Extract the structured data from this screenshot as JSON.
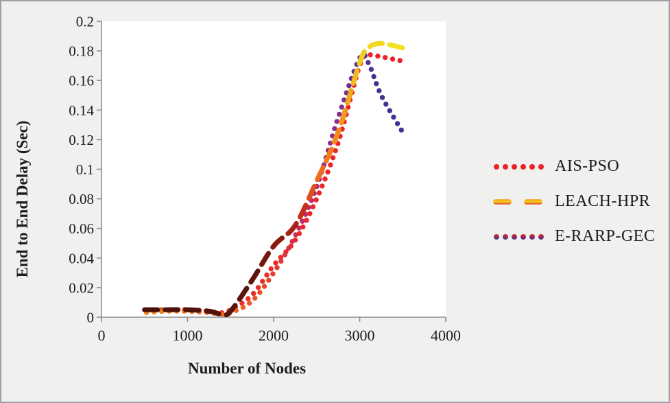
{
  "figure": {
    "bg": "#f0f0ee",
    "border_color": "#9ba1a4",
    "plot_bg": "#ffffff",
    "axis_color": "#8a8f91",
    "text_color": "#1d1d20"
  },
  "chart_data": {
    "type": "line",
    "title": "",
    "xlabel": "Number of Nodes",
    "ylabel": "End to End Delay (Sec)",
    "xlim": [
      0,
      4000
    ],
    "ylim": [
      0,
      0.2
    ],
    "grid": false,
    "legend_position": "right-center",
    "x_tick_values": [
      0,
      1000,
      2000,
      3000,
      4000
    ],
    "x_tick_labels": [
      "0",
      "1000",
      "2000",
      "3000",
      "4000"
    ],
    "y_tick_values": [
      0,
      0.02,
      0.04,
      0.06,
      0.08,
      0.1,
      0.12,
      0.14,
      0.16,
      0.18,
      0.2
    ],
    "y_tick_labels": [
      "0",
      "0.02",
      "0.04",
      "0.06",
      "0.08",
      "0.1",
      "0.12",
      "0.14",
      "0.16",
      "0.18",
      "0.2"
    ],
    "x": [
      500,
      750,
      1000,
      1250,
      1400,
      1500,
      1750,
      2000,
      2250,
      2500,
      2750,
      3000,
      3100,
      3250,
      3500
    ],
    "series": [
      {
        "name": "AIS-PSO",
        "marker": "dot",
        "values": [
          0.005,
          0.005,
          0.005,
          0.004,
          0.003,
          0.005,
          0.015,
          0.035,
          0.052,
          0.08,
          0.118,
          0.17,
          0.177,
          0.176,
          0.173
        ],
        "color_stops": [
          [
            0,
            "#ea4427"
          ],
          [
            0.3,
            "#e92b28"
          ],
          [
            1,
            "#ec2027"
          ]
        ],
        "legend_marker_colors": [
          "#ec2027"
        ]
      },
      {
        "name": "LEACH-HPR",
        "marker": "dash",
        "values": [
          0.005,
          0.005,
          0.005,
          0.004,
          0.002,
          0.004,
          0.025,
          0.048,
          0.062,
          0.092,
          0.125,
          0.172,
          0.182,
          0.185,
          0.182
        ],
        "color_stops": [
          [
            0,
            "#48110a"
          ],
          [
            0.3,
            "#5f1309"
          ],
          [
            0.42,
            "#8f1b0f"
          ],
          [
            0.5,
            "#c92e19"
          ],
          [
            0.58,
            "#ec671f"
          ],
          [
            0.7,
            "#f28f1c"
          ],
          [
            0.8,
            "#f4a81b"
          ],
          [
            0.88,
            "#f0cd20"
          ],
          [
            1,
            "#f4e421"
          ]
        ],
        "legend_marker_colors": [
          "#f6991b",
          "#f2cf1e",
          "#dd3a1e"
        ]
      },
      {
        "name": "E-RARP-GEC",
        "marker": "dot",
        "values": [
          0.003,
          0.004,
          0.004,
          0.003,
          0.002,
          0.003,
          0.011,
          0.03,
          0.055,
          0.088,
          0.135,
          0.175,
          0.172,
          0.15,
          0.125
        ],
        "color_stops": [
          [
            0,
            "#f6871d"
          ],
          [
            0.18,
            "#f26a20"
          ],
          [
            0.32,
            "#e23a31"
          ],
          [
            0.43,
            "#c52a67"
          ],
          [
            0.55,
            "#a82a7e"
          ],
          [
            0.66,
            "#8c2f93"
          ],
          [
            0.78,
            "#5b3194"
          ],
          [
            0.9,
            "#413092"
          ],
          [
            1,
            "#3e3191"
          ]
        ],
        "legend_marker_colors": [
          "#da2d2c",
          "#433093"
        ]
      }
    ]
  }
}
